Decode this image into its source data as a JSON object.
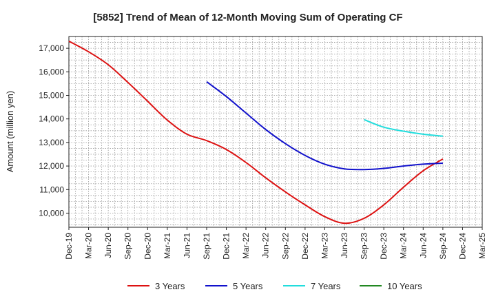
{
  "chart_data": {
    "type": "line",
    "title": "[5852]  Trend of Mean of 12-Month Moving Sum of Operating CF",
    "xlabel": "",
    "ylabel": "Amount (million yen)",
    "ylim": [
      9400,
      17500
    ],
    "yticks": [
      10000,
      11000,
      12000,
      13000,
      14000,
      15000,
      16000,
      17000
    ],
    "ytick_labels": [
      "10,000",
      "11,000",
      "12,000",
      "13,000",
      "14,000",
      "15,000",
      "16,000",
      "17,000"
    ],
    "x_ticks": [
      "Dec-19",
      "Mar-20",
      "Jun-20",
      "Sep-20",
      "Dec-20",
      "Mar-21",
      "Jun-21",
      "Sep-21",
      "Dec-21",
      "Mar-22",
      "Jun-22",
      "Sep-22",
      "Dec-22",
      "Mar-23",
      "Jun-23",
      "Sep-23",
      "Dec-23",
      "Mar-24",
      "Jun-24",
      "Sep-24",
      "Dec-24",
      "Mar-25"
    ],
    "grid": true,
    "legend_position": "bottom",
    "series": [
      {
        "name": "3 Years",
        "color": "#dd1111",
        "values": [
          17300,
          16850,
          16300,
          15550,
          14750,
          13950,
          13350,
          13080,
          12700,
          12150,
          11500,
          10900,
          10350,
          9850,
          9570,
          9780,
          10350,
          11100,
          11800,
          12300,
          null,
          null
        ]
      },
      {
        "name": "5 Years",
        "color": "#1111cc",
        "values": [
          null,
          null,
          null,
          null,
          null,
          null,
          null,
          15580,
          14950,
          14250,
          13550,
          12950,
          12450,
          12080,
          11880,
          11850,
          11900,
          12000,
          12080,
          12120,
          null,
          null
        ]
      },
      {
        "name": "7 Years",
        "color": "#22dddd",
        "values": [
          null,
          null,
          null,
          null,
          null,
          null,
          null,
          null,
          null,
          null,
          null,
          null,
          null,
          null,
          null,
          13970,
          13650,
          13480,
          13350,
          13270,
          null,
          null
        ]
      },
      {
        "name": "10 Years",
        "color": "#228822",
        "values": [
          null,
          null,
          null,
          null,
          null,
          null,
          null,
          null,
          null,
          null,
          null,
          null,
          null,
          null,
          null,
          null,
          null,
          null,
          null,
          null,
          null,
          null
        ]
      }
    ]
  }
}
